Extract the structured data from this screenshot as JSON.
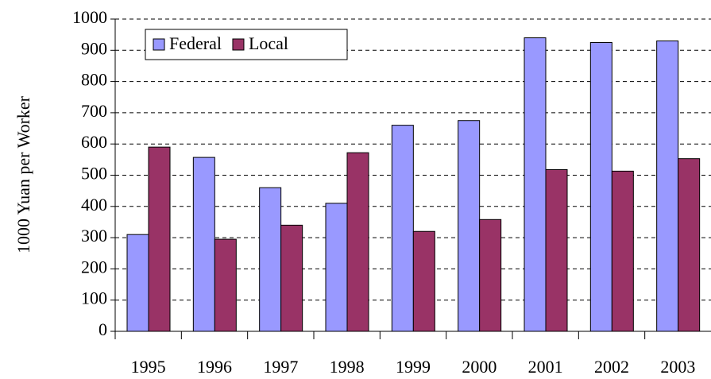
{
  "chart_data": {
    "type": "bar",
    "ylabel": "1000 Yuan per Worker",
    "categories": [
      "1995",
      "1996",
      "1997",
      "1998",
      "1999",
      "2000",
      "2001",
      "2002",
      "2003"
    ],
    "series": [
      {
        "name": "Federal",
        "color": "#9999ff",
        "values": [
          310,
          557,
          460,
          410,
          660,
          675,
          940,
          925,
          930
        ]
      },
      {
        "name": "Local",
        "color": "#993366",
        "values": [
          590,
          295,
          340,
          572,
          320,
          358,
          518,
          513,
          553
        ]
      }
    ],
    "ylim": [
      0,
      1000
    ],
    "yticks": [
      0,
      100,
      200,
      300,
      400,
      500,
      600,
      700,
      800,
      900,
      1000
    ],
    "grid": true,
    "legend": "upper-left"
  }
}
